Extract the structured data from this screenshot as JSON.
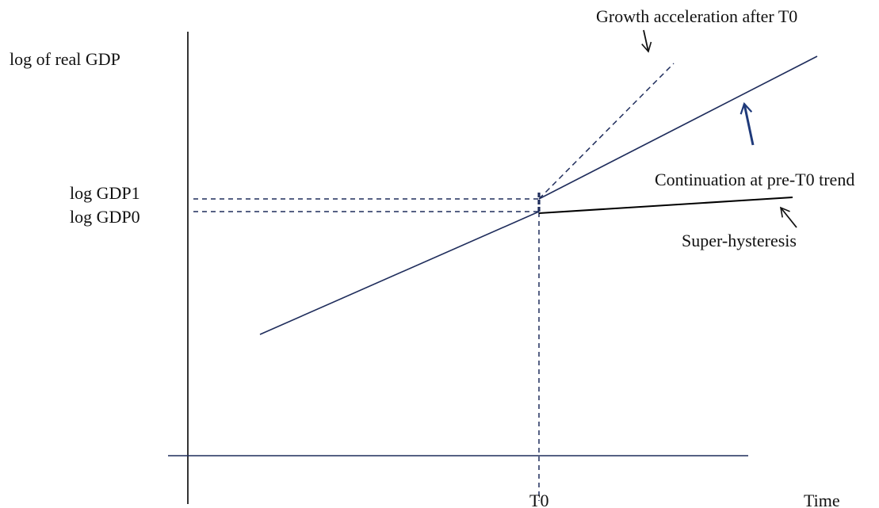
{
  "labels": {
    "y_axis": "log of real GDP",
    "x_axis": "Time",
    "t0": "T0",
    "gdp1": "log GDP1",
    "gdp0": "log GDP0",
    "growth_acceleration": "Growth acceleration after T0",
    "continuation": "Continuation at pre-T0 trend",
    "super_hysteresis": "Super-hysteresis"
  },
  "colors": {
    "trend_line": "#1f2d5c",
    "hysteresis_line": "#000000",
    "axis": "#000000",
    "guide_dashes": "#1f2d5c",
    "arrow_accent": "#1f3a7a",
    "text": "#111111"
  }
}
